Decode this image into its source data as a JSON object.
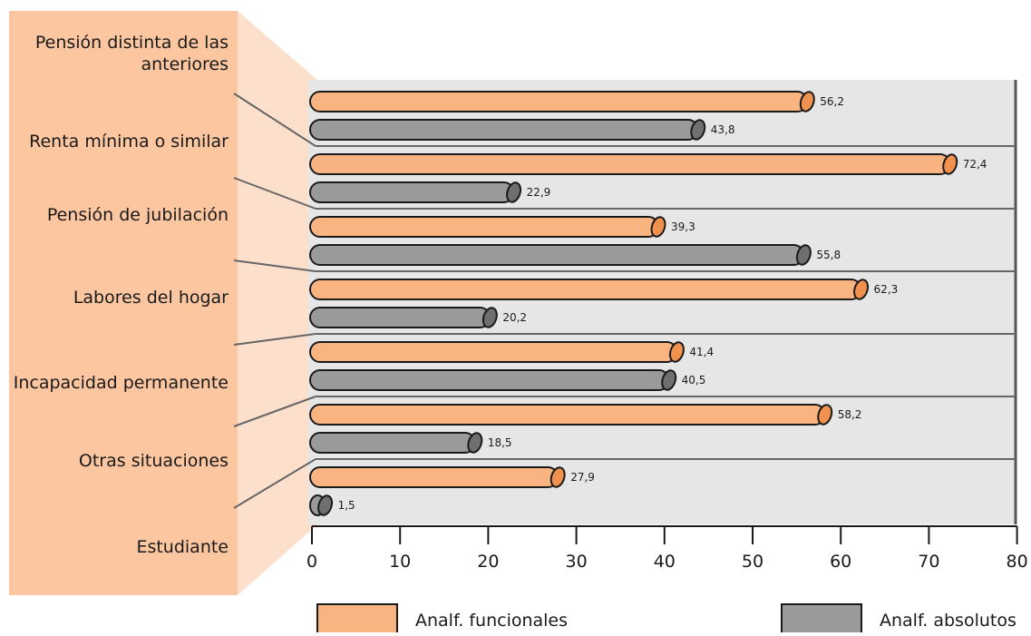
{
  "chart_data": {
    "type": "bar",
    "orientation": "horizontal",
    "categories": [
      "Pensión distinta de las anteriores",
      "Renta mínima o similar",
      "Pensión de jubilación",
      "Labores del hogar",
      "Incapacidad permanente",
      "Otras situaciones",
      "Estudiante"
    ],
    "category_label_lines": [
      [
        "Pensión distinta de las",
        "anteriores"
      ],
      [
        "Renta mínima o similar"
      ],
      [
        "Pensión de jubilación"
      ],
      [
        "Labores del hogar"
      ],
      [
        "Incapacidad permanente"
      ],
      [
        "Otras situaciones"
      ],
      [
        "Estudiante"
      ]
    ],
    "series": [
      {
        "name": "Analf. funcionales",
        "color": "#f9b482",
        "values": [
          56.2,
          72.4,
          39.3,
          62.3,
          41.4,
          58.2,
          27.9
        ],
        "labels": [
          "56,2",
          "72,4",
          "39,3",
          "62,3",
          "41,4",
          "58,2",
          "27,9"
        ]
      },
      {
        "name": "Analf. absolutos",
        "color": "#9a9a9a",
        "values": [
          43.8,
          22.9,
          55.8,
          20.2,
          40.5,
          18.5,
          1.5
        ],
        "labels": [
          "43,8",
          "22,9",
          "55,8",
          "20,2",
          "40,5",
          "18,5",
          "1,5"
        ]
      }
    ],
    "xlim": [
      0,
      80
    ],
    "xticks": [
      0,
      10,
      20,
      30,
      40,
      50,
      60,
      70,
      80
    ],
    "xtick_labels": [
      "0",
      "10",
      "20",
      "30",
      "40",
      "50",
      "60",
      "70",
      "80"
    ],
    "title": "",
    "xlabel": "",
    "ylabel": "",
    "grid": false,
    "legend_position": "bottom",
    "colors": {
      "plot_background": "#e6e6e6",
      "label_panel": "#fbc6a0",
      "separator": "#666666",
      "orange_end": "#f0914f",
      "gray_end": "#6f6f6f"
    }
  }
}
